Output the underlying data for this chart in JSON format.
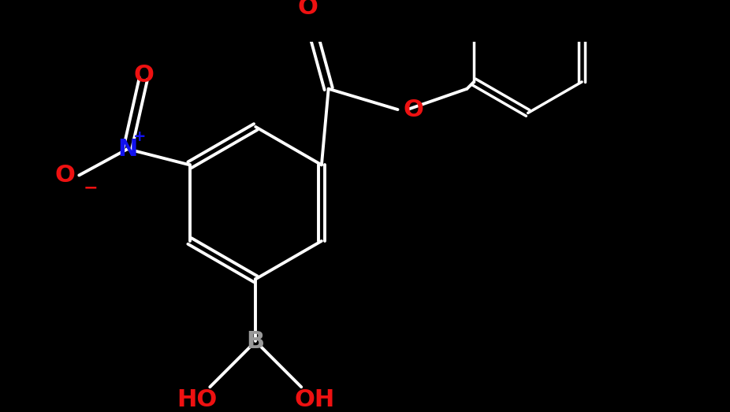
{
  "background_color": "#000000",
  "bond_color": "#ffffff",
  "bond_width": 2.8,
  "fig_width": 9.26,
  "fig_height": 5.23,
  "dpi": 100,
  "colors": {
    "bond": "#ffffff",
    "N": "#1111ee",
    "O": "#ee1111",
    "B": "#999999",
    "HO": "#ee1111"
  }
}
